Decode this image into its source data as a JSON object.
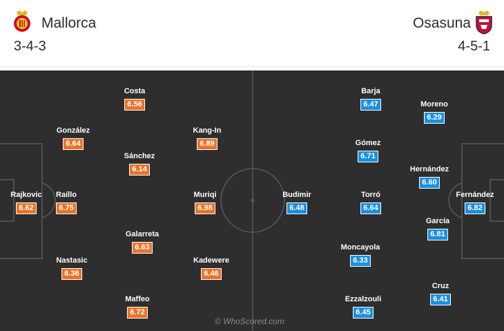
{
  "home": {
    "name": "Mallorca",
    "formation": "3-4-3",
    "crest_icon": "mallorca-crest-icon",
    "color": "#e8742a"
  },
  "away": {
    "name": "Osasuna",
    "formation": "4-5-1",
    "crest_icon": "osasuna-crest-icon",
    "color": "#1e8fde"
  },
  "home_players": [
    {
      "name": "Rajkovic",
      "rating": "6.62"
    },
    {
      "name": "González",
      "rating": "6.64"
    },
    {
      "name": "Raíllo",
      "rating": "6.75"
    },
    {
      "name": "Nastasic",
      "rating": "6.36"
    },
    {
      "name": "Costa",
      "rating": "6.56"
    },
    {
      "name": "Sánchez",
      "rating": "6.14"
    },
    {
      "name": "Galarreta",
      "rating": "6.63"
    },
    {
      "name": "Maffeo",
      "rating": "6.72"
    },
    {
      "name": "Kang-In",
      "rating": "6.89"
    },
    {
      "name": "Muriqi",
      "rating": "6.98"
    },
    {
      "name": "Kadewere",
      "rating": "6.46"
    }
  ],
  "away_players": [
    {
      "name": "Budimir",
      "rating": "6.48"
    },
    {
      "name": "Barja",
      "rating": "6.47"
    },
    {
      "name": "Gómez",
      "rating": "6.71"
    },
    {
      "name": "Torró",
      "rating": "6.64"
    },
    {
      "name": "Moncayola",
      "rating": "6.33"
    },
    {
      "name": "Ezzalzouli",
      "rating": "6.45"
    },
    {
      "name": "Moreno",
      "rating": "6.29"
    },
    {
      "name": "Hernández",
      "rating": "6.60"
    },
    {
      "name": "García",
      "rating": "6.81"
    },
    {
      "name": "Cruz",
      "rating": "6.41"
    },
    {
      "name": "Fernández",
      "rating": "6.82"
    }
  ],
  "watermark": "© WhoScored.com"
}
